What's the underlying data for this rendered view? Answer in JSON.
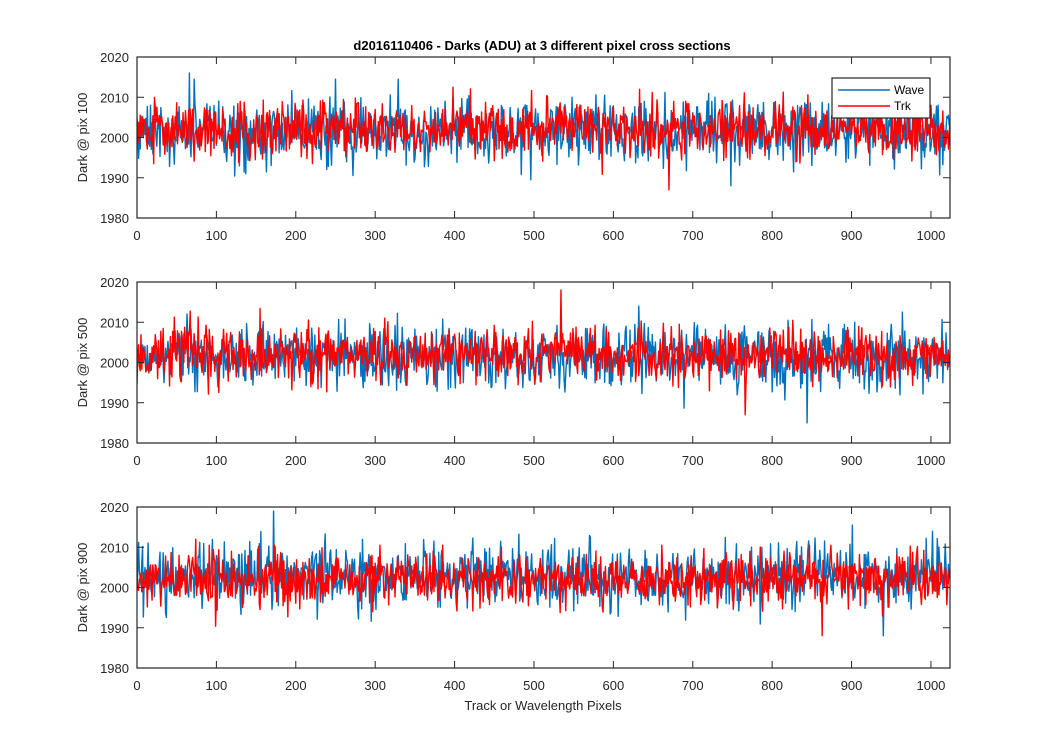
{
  "chart_data": {
    "type": "line",
    "title": "d2016110406 - Darks (ADU) at 3 different pixel cross sections",
    "xlabel": "Track or Wavelength Pixels",
    "xlim": [
      0,
      1024
    ],
    "xticks": [
      0,
      100,
      200,
      300,
      400,
      500,
      600,
      700,
      800,
      900,
      1000
    ],
    "legend": {
      "placement": "top-right",
      "entries": [
        "Wave",
        "Trk"
      ]
    },
    "colors": {
      "Wave": "#0072bd",
      "Trk": "#ff0000"
    },
    "subplots": [
      {
        "ylabel": "Dark @ pix 100",
        "ylim": [
          1980,
          2020
        ],
        "yticks": [
          1980,
          1990,
          2000,
          2010,
          2020
        ],
        "series": [
          {
            "name": "Wave",
            "mean": 2001.5,
            "std": 4.0,
            "min": 1988,
            "max": 2016
          },
          {
            "name": "Trk",
            "mean": 2002.0,
            "std": 3.5,
            "min": 1987,
            "max": 2014
          }
        ]
      },
      {
        "ylabel": "Dark @ pix 500",
        "ylim": [
          1980,
          2020
        ],
        "yticks": [
          1980,
          1990,
          2000,
          2010,
          2020
        ],
        "series": [
          {
            "name": "Wave",
            "mean": 2001.5,
            "std": 4.0,
            "min": 1985,
            "max": 2014
          },
          {
            "name": "Trk",
            "mean": 2002.0,
            "std": 3.5,
            "min": 1987,
            "max": 2018
          }
        ]
      },
      {
        "ylabel": "Dark @ pix 900",
        "ylim": [
          1980,
          2020
        ],
        "yticks": [
          1980,
          1990,
          2000,
          2010,
          2020
        ],
        "series": [
          {
            "name": "Wave",
            "mean": 2002.5,
            "std": 4.0,
            "min": 1988,
            "max": 2019
          },
          {
            "name": "Trk",
            "mean": 2002.0,
            "std": 3.5,
            "min": 1988,
            "max": 2012
          }
        ]
      }
    ]
  }
}
